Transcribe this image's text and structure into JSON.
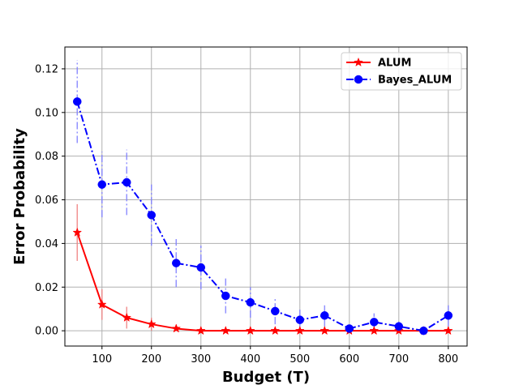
{
  "chart_data": {
    "type": "line",
    "title": "",
    "xlabel": "Budget (T)",
    "ylabel": "Error Probability",
    "xlim": [
      25,
      838
    ],
    "ylim": [
      -0.007,
      0.13
    ],
    "xticks": [
      100,
      200,
      300,
      400,
      500,
      600,
      700,
      800
    ],
    "yticks": [
      0.0,
      0.02,
      0.04,
      0.06,
      0.08,
      0.1,
      0.12
    ],
    "grid": true,
    "legend_position": "top-right",
    "series": [
      {
        "name": "ALUM",
        "color": "#ff0000",
        "error_color": "#f08080",
        "line_style": "solid",
        "marker": "star",
        "x": [
          50,
          100,
          150,
          200,
          250,
          300,
          350,
          400,
          450,
          500,
          550,
          600,
          650,
          700,
          750,
          800
        ],
        "y": [
          0.045,
          0.012,
          0.006,
          0.003,
          0.001,
          0.0,
          0.0,
          0.0,
          0.0,
          0.0,
          0.0,
          0.0,
          0.0,
          0.0,
          0.0,
          0.0
        ],
        "err": [
          0.013,
          0.007,
          0.005,
          0.003,
          0.001,
          0.0,
          0.0,
          0.0,
          0.0,
          0.0,
          0.0,
          0.0,
          0.0,
          0.0,
          0.0,
          0.0
        ]
      },
      {
        "name": "Bayes_ALUM",
        "color": "#0000ff",
        "error_color": "#7f7fff",
        "line_style": "dashdot",
        "marker": "circle",
        "x": [
          50,
          100,
          150,
          200,
          250,
          300,
          350,
          400,
          450,
          500,
          550,
          600,
          650,
          700,
          750,
          800
        ],
        "y": [
          0.105,
          0.067,
          0.068,
          0.053,
          0.031,
          0.029,
          0.016,
          0.013,
          0.009,
          0.005,
          0.007,
          0.001,
          0.004,
          0.002,
          0.0,
          0.007
        ],
        "err": [
          0.019,
          0.015,
          0.015,
          0.014,
          0.011,
          0.01,
          0.008,
          0.007,
          0.006,
          0.005,
          0.005,
          0.002,
          0.004,
          0.003,
          0.001,
          0.005
        ]
      }
    ]
  }
}
